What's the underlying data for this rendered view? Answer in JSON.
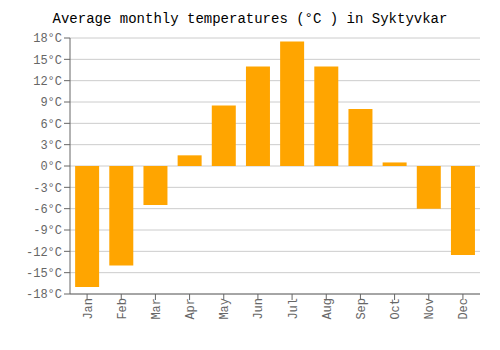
{
  "chart_data": {
    "type": "bar",
    "title": "Average monthly temperatures (°C ) in Syktyvkar",
    "categories": [
      "Jan",
      "Feb",
      "Mar",
      "Apr",
      "May",
      "Jun",
      "Jul",
      "Aug",
      "Sep",
      "Oct",
      "Nov",
      "Dec"
    ],
    "values": [
      -17,
      -14,
      -5.5,
      1.5,
      8.5,
      14,
      17.5,
      14,
      8,
      0.5,
      -6,
      -12.5
    ],
    "color": "#FFA500",
    "ylim": [
      -18,
      18
    ],
    "yticks": [
      {
        "value": -18,
        "label": "-18°C"
      },
      {
        "value": -15,
        "label": "-15°C"
      },
      {
        "value": -12,
        "label": "-12°C"
      },
      {
        "value": -9,
        "label": "-9°C"
      },
      {
        "value": -6,
        "label": "-6°C"
      },
      {
        "value": -3,
        "label": "-3°C"
      },
      {
        "value": 0,
        "label": "0°C"
      },
      {
        "value": 3,
        "label": "3°C"
      },
      {
        "value": 6,
        "label": "6°C"
      },
      {
        "value": 9,
        "label": "9°C"
      },
      {
        "value": 12,
        "label": "12°C"
      },
      {
        "value": 15,
        "label": "15°C"
      },
      {
        "value": 18,
        "label": "18°C"
      }
    ],
    "grid": true
  }
}
